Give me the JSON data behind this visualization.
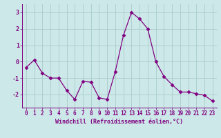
{
  "x": [
    0,
    1,
    2,
    3,
    4,
    5,
    6,
    7,
    8,
    9,
    10,
    11,
    12,
    13,
    14,
    15,
    16,
    17,
    18,
    19,
    20,
    21,
    22,
    23
  ],
  "y": [
    -0.35,
    0.1,
    -0.7,
    -1.0,
    -1.0,
    -1.75,
    -2.3,
    -1.2,
    -1.25,
    -2.2,
    -2.3,
    -0.6,
    1.6,
    3.0,
    2.6,
    2.0,
    0.0,
    -0.9,
    -1.4,
    -1.85,
    -1.85,
    -1.95,
    -2.05,
    -2.4
  ],
  "line_color": "#800080",
  "marker": "D",
  "marker_size": 2.5,
  "bg_color": "#cce8e8",
  "grid_color": "#aacccc",
  "xlabel": "Windchill (Refroidissement éolien,°C)",
  "ylim": [
    -2.8,
    3.5
  ],
  "xlim": [
    -0.5,
    23.5
  ],
  "yticks": [
    -2,
    -1,
    0,
    1,
    2,
    3
  ],
  "xticks": [
    0,
    1,
    2,
    3,
    4,
    5,
    6,
    7,
    8,
    9,
    10,
    11,
    12,
    13,
    14,
    15,
    16,
    17,
    18,
    19,
    20,
    21,
    22,
    23
  ],
  "label_color": "#800080",
  "tick_color": "#800080",
  "tick_fontsize": 5.5,
  "xlabel_fontsize": 6.0,
  "linewidth": 0.9
}
